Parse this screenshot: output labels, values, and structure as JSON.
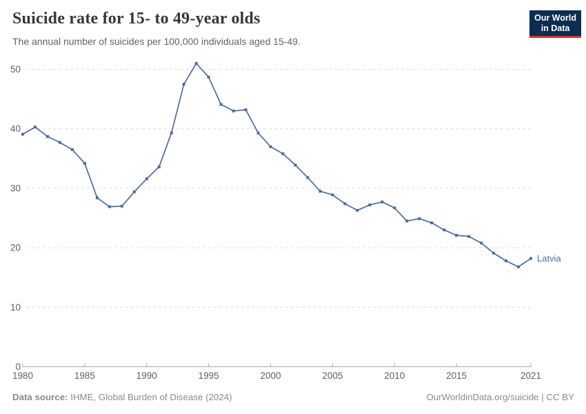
{
  "header": {
    "title": "Suicide rate for 15- to 49-year olds",
    "subtitle": "The annual number of suicides per 100,000 individuals aged 15-49.",
    "logo": {
      "line1": "Our World",
      "line2": "in Data",
      "bg_color": "#0c2d51",
      "accent_color": "#d3382d"
    }
  },
  "chart_data": {
    "type": "line",
    "title": "Suicide rate for 15- to 49-year olds",
    "subtitle": "The annual number of suicides per 100,000 individuals aged 15-49.",
    "xlabel": "",
    "ylabel": "",
    "xlim": [
      1980,
      2021
    ],
    "ylim": [
      0,
      50
    ],
    "xticks": [
      1980,
      1985,
      1990,
      1995,
      2000,
      2005,
      2010,
      2015,
      2021
    ],
    "yticks": [
      0,
      10,
      20,
      30,
      40,
      50
    ],
    "grid": "horizontal-dashed",
    "legend_position": "end-of-line",
    "x": [
      1980,
      1981,
      1982,
      1983,
      1984,
      1985,
      1986,
      1987,
      1988,
      1989,
      1990,
      1991,
      1992,
      1993,
      1994,
      1995,
      1996,
      1997,
      1998,
      1999,
      2000,
      2001,
      2002,
      2003,
      2004,
      2005,
      2006,
      2007,
      2008,
      2009,
      2010,
      2011,
      2012,
      2013,
      2014,
      2015,
      2016,
      2017,
      2018,
      2019,
      2020,
      2021
    ],
    "series": [
      {
        "name": "Latvia",
        "color": "#4c6a9c",
        "values": [
          39.1,
          40.3,
          38.7,
          37.7,
          36.5,
          34.2,
          28.4,
          26.9,
          27.0,
          29.4,
          31.6,
          33.6,
          39.3,
          47.5,
          51.0,
          48.7,
          44.1,
          43.0,
          43.2,
          39.3,
          37.0,
          35.8,
          33.9,
          31.8,
          29.5,
          28.9,
          27.4,
          26.3,
          27.2,
          27.7,
          26.7,
          24.5,
          24.9,
          24.2,
          23.0,
          22.1,
          21.9,
          20.8,
          19.1,
          17.8,
          16.8,
          18.2
        ]
      }
    ],
    "style": {
      "grid_color": "#dcdcdc",
      "axis_color": "#a8a8a8",
      "tick_label_color": "#5e5e5e"
    }
  },
  "footer": {
    "source_label": "Data source:",
    "source_text": " IHME, Global Burden of Disease (2024)",
    "rights": "OurWorldinData.org/suicide | CC BY"
  }
}
